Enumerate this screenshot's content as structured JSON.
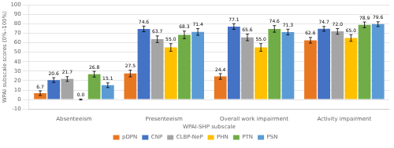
{
  "chart_data": {
    "type": "bar",
    "categories": [
      "Absenteeism",
      "Presenteeism",
      "Overall work impairment",
      "Activity impairment"
    ],
    "series": [
      {
        "name": "pDPN",
        "color": "#E87722",
        "values": [
          6.7,
          27.5,
          24.4,
          62.6
        ],
        "value_labels": [
          "6.7",
          "27.5",
          "24.4",
          "62.6"
        ],
        "errors": [
          2.5,
          3.5,
          3.0,
          3.0
        ]
      },
      {
        "name": "CNP",
        "color": "#4472C4",
        "values": [
          20.6,
          74.6,
          77.1,
          74.7
        ],
        "value_labels": [
          "20.6",
          "74.6",
          "77.1",
          "74.7"
        ],
        "errors": [
          2.5,
          3.0,
          3.0,
          2.5
        ]
      },
      {
        "name": "CLBP-NeP",
        "color": "#A5A5A5",
        "values": [
          21.7,
          63.7,
          65.6,
          72.0
        ],
        "value_labels": [
          "21.7",
          "63.7",
          "65.6",
          "72.0"
        ],
        "errors": [
          2.5,
          3.5,
          3.5,
          3.0
        ]
      },
      {
        "name": "PHN",
        "color": "#FFC000",
        "values": [
          0.0,
          55.0,
          55.0,
          65.0
        ],
        "value_labels": [
          "0.0",
          "55.0",
          "55.0",
          "65.0"
        ],
        "errors": [
          0.5,
          4.0,
          4.0,
          3.5
        ]
      },
      {
        "name": "PTN",
        "color": "#70AD47",
        "values": [
          26.8,
          68.3,
          74.6,
          78.9
        ],
        "value_labels": [
          "26.8",
          "68.3",
          "74.6",
          "78.9"
        ],
        "errors": [
          3.0,
          4.0,
          3.5,
          3.0
        ]
      },
      {
        "name": "PSN",
        "color": "#5B9BD5",
        "values": [
          15.1,
          71.4,
          71.3,
          79.6
        ],
        "value_labels": [
          "15.1",
          "71.4",
          "71.3",
          "79.6"
        ],
        "errors": [
          2.5,
          3.5,
          3.0,
          2.5
        ]
      }
    ],
    "xlabel": "WPAI-SHP subscale",
    "ylabel": "WPAI subscale scores (0%–100%)",
    "ylim": [
      -10,
      100
    ],
    "yticks": [
      -10,
      0,
      10,
      20,
      30,
      40,
      50,
      60,
      70,
      80,
      90,
      100
    ],
    "grid": true,
    "legend": "bottom",
    "data_labels": true
  }
}
